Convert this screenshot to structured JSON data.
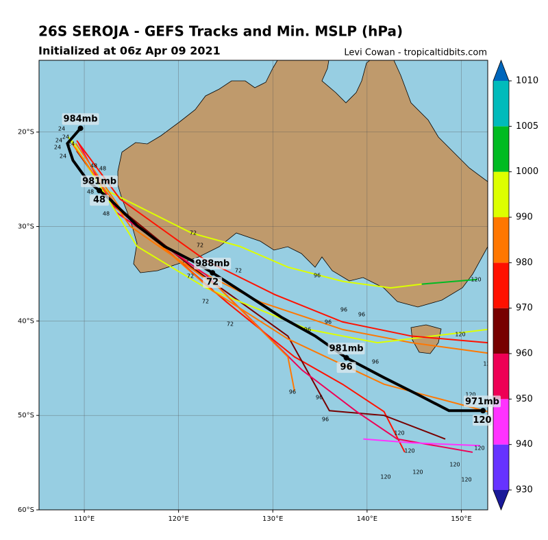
{
  "title": "26S SEROJA - GEFS Tracks and Min. MSLP (hPa)",
  "subtitle": "Initialized at 06z Apr 09 2021",
  "credit": "Levi Cowan - tropicaltidbits.com",
  "map": {
    "lon_range": [
      105.2,
      152.8
    ],
    "lat_range": [
      -12.4,
      -60
    ],
    "lon_ticks": [
      {
        "value": 110,
        "label": "110°E"
      },
      {
        "value": 120,
        "label": "120°E"
      },
      {
        "value": 130,
        "label": "130°E"
      },
      {
        "value": 140,
        "label": "140°E"
      },
      {
        "value": 150,
        "label": "150°E"
      }
    ],
    "lat_ticks": [
      {
        "value": -20,
        "label": "20°S"
      },
      {
        "value": -30,
        "label": "30°S"
      },
      {
        "value": -40,
        "label": "40°S"
      },
      {
        "value": -50,
        "label": "50°S"
      },
      {
        "value": -60,
        "label": "60°S"
      }
    ],
    "ensemble_tracks": [
      {
        "color": "#ddff00",
        "lon": [
          108.3,
          112.0,
          121.4,
          126.5,
          131.6,
          137.4,
          142.5,
          145.8
        ],
        "lat": [
          -20.5,
          -26.0,
          -30.7,
          -32.1,
          -34.3,
          -35.8,
          -36.5,
          -36.1
        ]
      },
      {
        "color": "#00bb22",
        "lon": [
          145.8,
          151.7
        ],
        "lat": [
          -36.1,
          -35.6
        ]
      },
      {
        "color": "#ff7700",
        "lon": [
          108.7,
          112.7,
          120.0,
          128.7,
          137.4,
          144.7,
          152.8
        ],
        "lat": [
          -21.2,
          -27.1,
          -33.6,
          -38.0,
          -40.9,
          -42.3,
          -43.4
        ]
      },
      {
        "color": "#ff1100",
        "lon": [
          109.1,
          113.1,
          119.2,
          125.1,
          132.3,
          137.4,
          141.8,
          144.0
        ],
        "lat": [
          -21.6,
          -27.8,
          -32.9,
          -38.0,
          -43.8,
          -46.7,
          -49.6,
          -53.9
        ]
      },
      {
        "color": "#770000",
        "lon": [
          109.2,
          113.4,
          121.4,
          131.6,
          136.0,
          141.8,
          148.3
        ],
        "lat": [
          -22.0,
          -27.8,
          -34.3,
          -41.6,
          -49.5,
          -50.0,
          -52.5
        ]
      },
      {
        "color": "#ee0055",
        "lon": [
          109.4,
          113.4,
          122.9,
          133.1,
          138.9,
          143.2,
          151.2
        ],
        "lat": [
          -21.2,
          -28.5,
          -35.1,
          -45.2,
          -49.6,
          -52.5,
          -53.9
        ]
      },
      {
        "color": "#ff33ff",
        "lon": [
          139.6,
          144.7,
          152.0
        ],
        "lat": [
          -52.5,
          -52.9,
          -53.2
        ]
      },
      {
        "color": "#ddff00",
        "lon": [
          108.7,
          115.6,
          122.9,
          133.8,
          141.1,
          152.8
        ],
        "lat": [
          -20.9,
          -32.1,
          -36.5,
          -40.9,
          -42.3,
          -40.9
        ]
      },
      {
        "color": "#ff7700",
        "lon": [
          109.0,
          114.9,
          124.3,
          131.6,
          132.3
        ],
        "lat": [
          -21.6,
          -30.0,
          -36.5,
          -43.8,
          -47.4
        ]
      },
      {
        "color": "#ff1100",
        "lon": [
          109.2,
          113.8,
          122.9,
          130.2,
          137.4,
          144.7,
          152.8
        ],
        "lat": [
          -20.9,
          -27.1,
          -33.6,
          -37.2,
          -40.1,
          -41.6,
          -42.3
        ]
      },
      {
        "color": "#ff7700",
        "lon": [
          109.1,
          114.1,
          123.6,
          131.6,
          141.8,
          152.8
        ],
        "lat": [
          -21.2,
          -28.5,
          -36.8,
          -41.9,
          -46.7,
          -49.6
        ]
      }
    ],
    "member_labels": [
      "24",
      "24",
      "24",
      "24",
      "24",
      "24",
      "48",
      "48",
      "48",
      "48",
      "72",
      "72",
      "72",
      "72",
      "72",
      "72",
      "96",
      "96",
      "96",
      "96",
      "96",
      "96",
      "96",
      "96",
      "96",
      "120",
      "120",
      "120",
      "120",
      "120",
      "120",
      "120",
      "120",
      "120",
      "120",
      "120"
    ],
    "mean_track": [
      {
        "lon": 109.6,
        "lat": -19.6,
        "pressure": "984mb"
      },
      {
        "lon": 108.2,
        "lat": -21.2
      },
      {
        "lon": 108.8,
        "lat": -23.0
      },
      {
        "lon": 110.4,
        "lat": -25.2
      },
      {
        "lon": 111.6,
        "lat": -26.2,
        "pressure": "981mb",
        "hour": "48"
      },
      {
        "lon": 112.7,
        "lat": -27.1
      },
      {
        "lon": 115.6,
        "lat": -29.9
      },
      {
        "lon": 118.5,
        "lat": -32.1
      },
      {
        "lon": 121.4,
        "lat": -33.6
      },
      {
        "lon": 123.6,
        "lat": -34.9,
        "pressure": "988mb",
        "hour": "72"
      },
      {
        "lon": 127.2,
        "lat": -37.2
      },
      {
        "lon": 130.9,
        "lat": -39.6
      },
      {
        "lon": 134.5,
        "lat": -41.6
      },
      {
        "lon": 137.8,
        "lat": -43.9,
        "pressure": "981mb",
        "hour": "96"
      },
      {
        "lon": 141.8,
        "lat": -46.0
      },
      {
        "lon": 145.4,
        "lat": -47.8
      },
      {
        "lon": 148.7,
        "lat": -49.5
      },
      {
        "lon": 152.3,
        "lat": -49.5,
        "pressure": "971mb",
        "hour": "120"
      }
    ]
  },
  "colorbar": {
    "levels": [
      930,
      940,
      950,
      960,
      970,
      980,
      990,
      1000,
      1005,
      1010
    ],
    "colors": [
      "#6633ff",
      "#ff33ff",
      "#ee0055",
      "#770000",
      "#ff1100",
      "#ff7700",
      "#ddff00",
      "#00bb22",
      "#00bbbb"
    ],
    "under_color": "#1a1a99",
    "over_color": "#0066bb"
  }
}
